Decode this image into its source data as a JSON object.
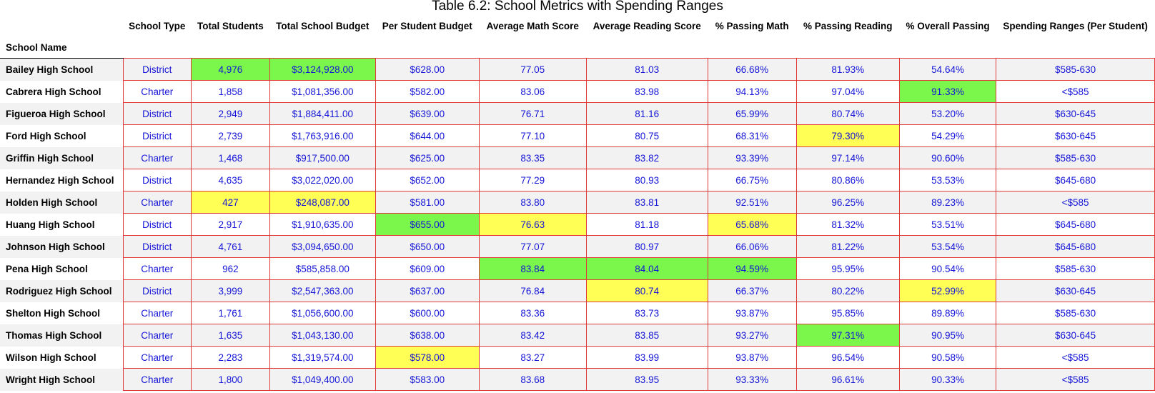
{
  "caption": "Table 6.2: School Metrics with Spending Ranges",
  "index_header": "School Name",
  "columns": [
    {
      "key": "type",
      "label": "School Type"
    },
    {
      "key": "students",
      "label": "Total Students"
    },
    {
      "key": "budget",
      "label": "Total School Budget"
    },
    {
      "key": "per_student",
      "label": "Per Student Budget"
    },
    {
      "key": "math",
      "label": "Average Math Score"
    },
    {
      "key": "reading",
      "label": "Average Reading Score"
    },
    {
      "key": "pass_math",
      "label": "% Passing Math"
    },
    {
      "key": "pass_reading",
      "label": "% Passing Reading"
    },
    {
      "key": "pass_overall",
      "label": "% Overall Passing"
    },
    {
      "key": "range",
      "label": "Spending Ranges (Per Student)"
    }
  ],
  "highlight_colors": {
    "max": "#7af74a",
    "min": "#ffff55"
  },
  "rows": [
    {
      "name": "Bailey High School",
      "type": "District",
      "students": "4,976",
      "budget": "$3,124,928.00",
      "per_student": "$628.00",
      "math": "77.05",
      "reading": "81.03",
      "pass_math": "66.68%",
      "pass_reading": "81.93%",
      "pass_overall": "54.64%",
      "range": "$585-630"
    },
    {
      "name": "Cabrera High School",
      "type": "Charter",
      "students": "1,858",
      "budget": "$1,081,356.00",
      "per_student": "$582.00",
      "math": "83.06",
      "reading": "83.98",
      "pass_math": "94.13%",
      "pass_reading": "97.04%",
      "pass_overall": "91.33%",
      "range": "<$585"
    },
    {
      "name": "Figueroa High School",
      "type": "District",
      "students": "2,949",
      "budget": "$1,884,411.00",
      "per_student": "$639.00",
      "math": "76.71",
      "reading": "81.16",
      "pass_math": "65.99%",
      "pass_reading": "80.74%",
      "pass_overall": "53.20%",
      "range": "$630-645"
    },
    {
      "name": "Ford High School",
      "type": "District",
      "students": "2,739",
      "budget": "$1,763,916.00",
      "per_student": "$644.00",
      "math": "77.10",
      "reading": "80.75",
      "pass_math": "68.31%",
      "pass_reading": "79.30%",
      "pass_overall": "54.29%",
      "range": "$630-645"
    },
    {
      "name": "Griffin High School",
      "type": "Charter",
      "students": "1,468",
      "budget": "$917,500.00",
      "per_student": "$625.00",
      "math": "83.35",
      "reading": "83.82",
      "pass_math": "93.39%",
      "pass_reading": "97.14%",
      "pass_overall": "90.60%",
      "range": "$585-630"
    },
    {
      "name": "Hernandez High School",
      "type": "District",
      "students": "4,635",
      "budget": "$3,022,020.00",
      "per_student": "$652.00",
      "math": "77.29",
      "reading": "80.93",
      "pass_math": "66.75%",
      "pass_reading": "80.86%",
      "pass_overall": "53.53%",
      "range": "$645-680"
    },
    {
      "name": "Holden High School",
      "type": "Charter",
      "students": "427",
      "budget": "$248,087.00",
      "per_student": "$581.00",
      "math": "83.80",
      "reading": "83.81",
      "pass_math": "92.51%",
      "pass_reading": "96.25%",
      "pass_overall": "89.23%",
      "range": "<$585"
    },
    {
      "name": "Huang High School",
      "type": "District",
      "students": "2,917",
      "budget": "$1,910,635.00",
      "per_student": "$655.00",
      "math": "76.63",
      "reading": "81.18",
      "pass_math": "65.68%",
      "pass_reading": "81.32%",
      "pass_overall": "53.51%",
      "range": "$645-680"
    },
    {
      "name": "Johnson High School",
      "type": "District",
      "students": "4,761",
      "budget": "$3,094,650.00",
      "per_student": "$650.00",
      "math": "77.07",
      "reading": "80.97",
      "pass_math": "66.06%",
      "pass_reading": "81.22%",
      "pass_overall": "53.54%",
      "range": "$645-680"
    },
    {
      "name": "Pena High School",
      "type": "Charter",
      "students": "962",
      "budget": "$585,858.00",
      "per_student": "$609.00",
      "math": "83.84",
      "reading": "84.04",
      "pass_math": "94.59%",
      "pass_reading": "95.95%",
      "pass_overall": "90.54%",
      "range": "$585-630"
    },
    {
      "name": "Rodriguez High School",
      "type": "District",
      "students": "3,999",
      "budget": "$2,547,363.00",
      "per_student": "$637.00",
      "math": "76.84",
      "reading": "80.74",
      "pass_math": "66.37%",
      "pass_reading": "80.22%",
      "pass_overall": "52.99%",
      "range": "$630-645"
    },
    {
      "name": "Shelton High School",
      "type": "Charter",
      "students": "1,761",
      "budget": "$1,056,600.00",
      "per_student": "$600.00",
      "math": "83.36",
      "reading": "83.73",
      "pass_math": "93.87%",
      "pass_reading": "95.85%",
      "pass_overall": "89.89%",
      "range": "$585-630"
    },
    {
      "name": "Thomas High School",
      "type": "Charter",
      "students": "1,635",
      "budget": "$1,043,130.00",
      "per_student": "$638.00",
      "math": "83.42",
      "reading": "83.85",
      "pass_math": "93.27%",
      "pass_reading": "97.31%",
      "pass_overall": "90.95%",
      "range": "$630-645"
    },
    {
      "name": "Wilson High School",
      "type": "Charter",
      "students": "2,283",
      "budget": "$1,319,574.00",
      "per_student": "$578.00",
      "math": "83.27",
      "reading": "83.99",
      "pass_math": "93.87%",
      "pass_reading": "96.54%",
      "pass_overall": "90.58%",
      "range": "<$585"
    },
    {
      "name": "Wright High School",
      "type": "Charter",
      "students": "1,800",
      "budget": "$1,049,400.00",
      "per_student": "$583.00",
      "math": "83.68",
      "reading": "83.95",
      "pass_math": "93.33%",
      "pass_reading": "96.61%",
      "pass_overall": "90.33%",
      "range": "<$585"
    }
  ],
  "highlights": {
    "max": [
      {
        "row": 0,
        "col": "students"
      },
      {
        "row": 0,
        "col": "budget"
      },
      {
        "row": 1,
        "col": "pass_overall"
      },
      {
        "row": 7,
        "col": "per_student"
      },
      {
        "row": 9,
        "col": "math"
      },
      {
        "row": 9,
        "col": "reading"
      },
      {
        "row": 9,
        "col": "pass_math"
      },
      {
        "row": 12,
        "col": "pass_reading"
      }
    ],
    "min": [
      {
        "row": 3,
        "col": "pass_reading"
      },
      {
        "row": 6,
        "col": "students"
      },
      {
        "row": 6,
        "col": "budget"
      },
      {
        "row": 7,
        "col": "math"
      },
      {
        "row": 7,
        "col": "pass_math"
      },
      {
        "row": 10,
        "col": "reading"
      },
      {
        "row": 10,
        "col": "pass_overall"
      },
      {
        "row": 13,
        "col": "per_student"
      }
    ]
  }
}
